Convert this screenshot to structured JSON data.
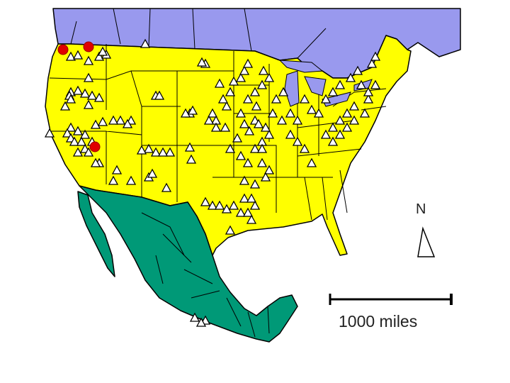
{
  "map": {
    "colors": {
      "canada": "#9999ee",
      "usa": "#ffff00",
      "mexico": "#009977",
      "border": "#000000",
      "site_marker": "#ffffff",
      "highlight_marker": "#e00000"
    },
    "markers": {
      "site_icon": "triangle-icon",
      "highlight_icon": "red-circle-icon"
    },
    "scale_bar": {
      "label": "1000 miles"
    },
    "north_arrow": {
      "label": "N"
    }
  }
}
